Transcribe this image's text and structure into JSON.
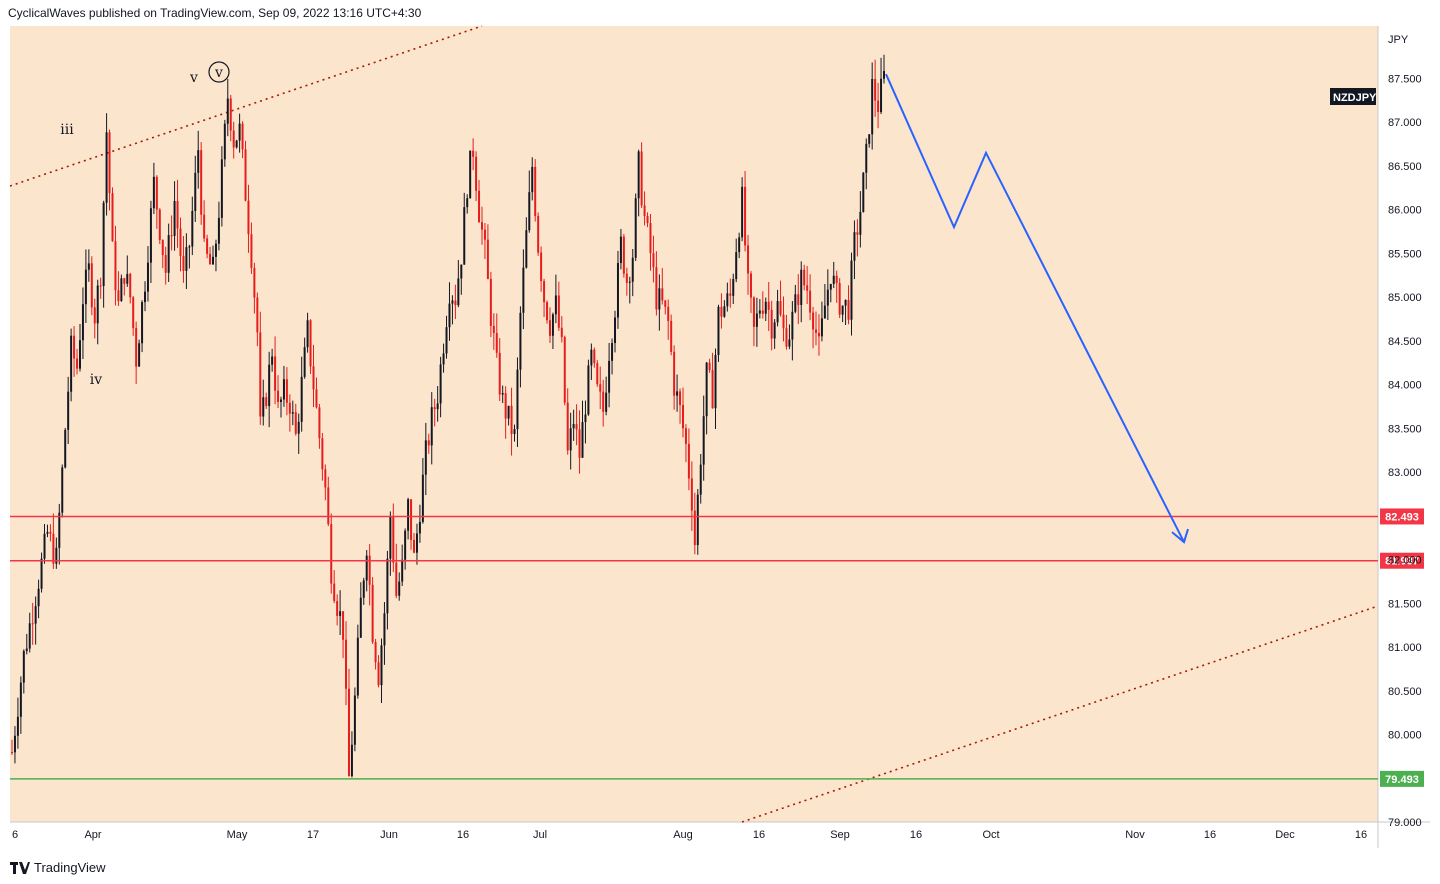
{
  "header": {
    "publisher_line": "CyclicalWaves published on TradingView.com, Sep 09, 2022 13:16 UTC+4:30"
  },
  "footer": {
    "brand": "TradingView"
  },
  "colors": {
    "background": "#fce5cd",
    "candle_up": "#131722",
    "candle_down": "#e51d1d",
    "resistance": "#f23645",
    "support": "#4caf50",
    "projection": "#2962ff",
    "channel": "#a61c00"
  },
  "chart_data": {
    "type": "candlestick",
    "symbol": "NZDJPY",
    "currency": "JPY",
    "ylim": [
      79.0,
      88.1
    ],
    "y_ticks": [
      "87.500",
      "87.000",
      "86.500",
      "86.000",
      "85.500",
      "85.000",
      "84.500",
      "84.000",
      "83.500",
      "83.000",
      "82.000",
      "81.500",
      "81.000",
      "80.500",
      "80.000",
      "79.000"
    ],
    "x_ticks": [
      "6",
      "Apr",
      "May",
      "17",
      "Jun",
      "16",
      "Jul",
      "Aug",
      "16",
      "Sep",
      "16",
      "Oct",
      "Nov",
      "16",
      "Dec",
      "16"
    ],
    "horizontal_levels": [
      {
        "value": 82.493,
        "label": "82.493",
        "color": "#f23645"
      },
      {
        "value": 81.987,
        "label": "81.987",
        "color": "#f23645"
      },
      {
        "value": 79.493,
        "label": "79.493",
        "color": "#4caf50"
      }
    ],
    "wave_labels": [
      "iii",
      "iv",
      "v",
      "v"
    ],
    "price_path": [
      [
        0,
        79.8
      ],
      [
        4,
        80.9
      ],
      [
        8,
        81.6
      ],
      [
        12,
        82.3
      ],
      [
        15,
        82.0
      ],
      [
        18,
        83.5
      ],
      [
        20,
        84.4
      ],
      [
        22,
        84.2
      ],
      [
        24,
        85.0
      ],
      [
        26,
        85.3
      ],
      [
        28,
        84.8
      ],
      [
        30,
        85.3
      ],
      [
        32,
        86.9
      ],
      [
        34,
        85.5
      ],
      [
        36,
        84.9
      ],
      [
        38,
        85.3
      ],
      [
        40,
        85.0
      ],
      [
        42,
        84.3
      ],
      [
        45,
        85.2
      ],
      [
        48,
        86.3
      ],
      [
        50,
        85.8
      ],
      [
        52,
        85.3
      ],
      [
        55,
        86.1
      ],
      [
        58,
        85.2
      ],
      [
        60,
        85.6
      ],
      [
        63,
        86.7
      ],
      [
        65,
        85.5
      ],
      [
        68,
        85.3
      ],
      [
        70,
        86.0
      ],
      [
        73,
        87.3
      ],
      [
        75,
        86.8
      ],
      [
        77,
        86.9
      ],
      [
        79,
        86.2
      ],
      [
        81,
        85.5
      ],
      [
        83,
        84.6
      ],
      [
        84,
        83.5
      ],
      [
        86,
        83.9
      ],
      [
        88,
        84.4
      ],
      [
        90,
        83.7
      ],
      [
        92,
        83.9
      ],
      [
        94,
        83.8
      ],
      [
        96,
        83.4
      ],
      [
        98,
        84.0
      ],
      [
        100,
        84.6
      ],
      [
        102,
        84.0
      ],
      [
        104,
        83.4
      ],
      [
        106,
        82.8
      ],
      [
        108,
        81.9
      ],
      [
        110,
        81.5
      ],
      [
        112,
        81.2
      ],
      [
        114,
        79.5
      ],
      [
        116,
        80.4
      ],
      [
        118,
        81.5
      ],
      [
        120,
        82.2
      ],
      [
        122,
        81.2
      ],
      [
        124,
        80.7
      ],
      [
        126,
        81.4
      ],
      [
        128,
        82.5
      ],
      [
        130,
        81.6
      ],
      [
        132,
        81.9
      ],
      [
        134,
        82.6
      ],
      [
        136,
        82.0
      ],
      [
        138,
        82.6
      ],
      [
        140,
        83.2
      ],
      [
        142,
        83.6
      ],
      [
        144,
        83.9
      ],
      [
        146,
        84.5
      ],
      [
        148,
        85.1
      ],
      [
        150,
        85.0
      ],
      [
        152,
        85.5
      ],
      [
        154,
        86.3
      ],
      [
        156,
        86.7
      ],
      [
        158,
        86.0
      ],
      [
        160,
        85.5
      ],
      [
        162,
        84.8
      ],
      [
        164,
        84.2
      ],
      [
        166,
        83.8
      ],
      [
        168,
        83.6
      ],
      [
        170,
        83.4
      ],
      [
        172,
        84.8
      ],
      [
        174,
        85.7
      ],
      [
        176,
        86.5
      ],
      [
        178,
        85.6
      ],
      [
        180,
        85.0
      ],
      [
        182,
        84.7
      ],
      [
        184,
        84.9
      ],
      [
        186,
        84.4
      ],
      [
        188,
        83.2
      ],
      [
        190,
        83.6
      ],
      [
        192,
        83.2
      ],
      [
        194,
        83.8
      ],
      [
        196,
        84.3
      ],
      [
        198,
        83.9
      ],
      [
        200,
        83.7
      ],
      [
        202,
        84.4
      ],
      [
        204,
        84.9
      ],
      [
        206,
        85.6
      ],
      [
        208,
        85.2
      ],
      [
        210,
        85.5
      ],
      [
        212,
        86.5
      ],
      [
        214,
        85.9
      ],
      [
        216,
        85.5
      ],
      [
        218,
        85.0
      ],
      [
        220,
        84.9
      ],
      [
        222,
        84.7
      ],
      [
        224,
        84.0
      ],
      [
        226,
        83.7
      ],
      [
        228,
        83.3
      ],
      [
        230,
        82.7
      ],
      [
        231,
        82.2
      ],
      [
        233,
        83.2
      ],
      [
        235,
        84.1
      ],
      [
        237,
        83.9
      ],
      [
        239,
        84.8
      ],
      [
        241,
        84.9
      ],
      [
        243,
        85.0
      ],
      [
        245,
        85.6
      ],
      [
        247,
        86.1
      ],
      [
        249,
        85.1
      ],
      [
        251,
        84.6
      ],
      [
        253,
        84.9
      ],
      [
        255,
        85.0
      ],
      [
        257,
        84.7
      ],
      [
        259,
        84.9
      ],
      [
        261,
        84.6
      ],
      [
        263,
        84.6
      ],
      [
        265,
        84.9
      ],
      [
        267,
        85.2
      ],
      [
        269,
        85.1
      ],
      [
        271,
        84.8
      ],
      [
        273,
        84.4
      ],
      [
        275,
        84.9
      ],
      [
        277,
        85.3
      ],
      [
        279,
        85.0
      ],
      [
        281,
        84.9
      ],
      [
        283,
        84.9
      ],
      [
        285,
        85.6
      ],
      [
        287,
        86.0
      ],
      [
        289,
        86.6
      ],
      [
        291,
        87.4
      ],
      [
        293,
        87.2
      ],
      [
        295,
        87.5
      ]
    ],
    "projection_path": [
      [
        87.55,
        0
      ],
      [
        85.8,
        1
      ],
      [
        86.65,
        2
      ],
      [
        82.2,
        3
      ]
    ]
  }
}
